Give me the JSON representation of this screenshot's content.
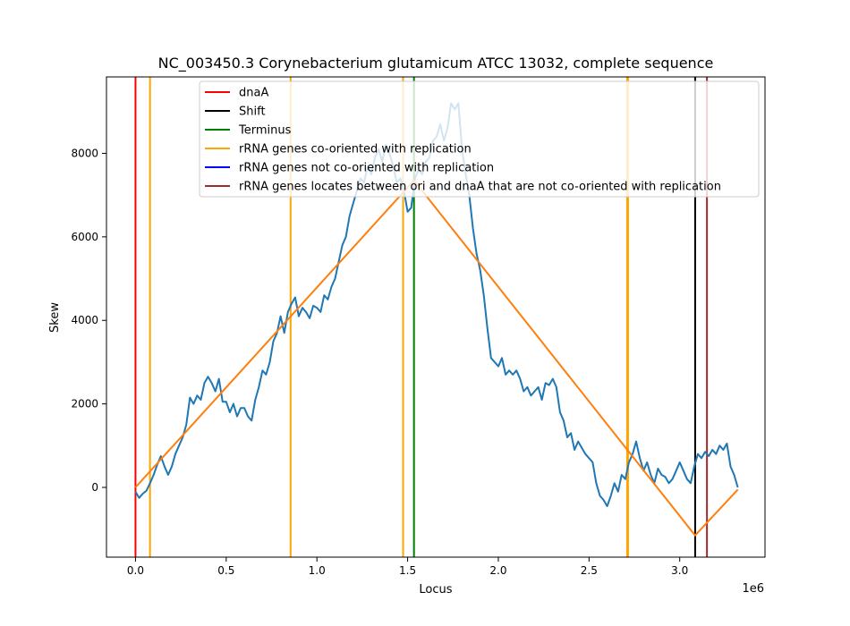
{
  "chart_data": {
    "type": "line",
    "title": "NC_003450.3 Corynebacterium glutamicum ATCC 13032, complete sequence",
    "xlabel": "Locus",
    "ylabel": "Skew",
    "x_offset_label": "1e6",
    "xlim": [
      -0.16,
      3.47
    ],
    "ylim": [
      -1670,
      9830
    ],
    "x_ticks": [
      0.0,
      0.5,
      1.0,
      1.5,
      2.0,
      2.5,
      3.0
    ],
    "x_tick_labels": [
      "0.0",
      "0.5",
      "1.0",
      "1.5",
      "2.0",
      "2.5",
      "3.0"
    ],
    "y_ticks": [
      0,
      2000,
      4000,
      6000,
      8000
    ],
    "y_tick_labels": [
      "0",
      "2000",
      "4000",
      "6000",
      "8000"
    ],
    "grid": false,
    "legend_position": "top-right",
    "legend": [
      {
        "label": "dnaA",
        "color": "#ff0000"
      },
      {
        "label": "Shift",
        "color": "#000000"
      },
      {
        "label": "Terminus",
        "color": "#008000"
      },
      {
        "label": "rRNA genes co-oriented with replication",
        "color": "#ffa500"
      },
      {
        "label": "rRNA genes not co-oriented with replication",
        "color": "#0000ff"
      },
      {
        "label": "rRNA genes locates between ori and dnaA that are not co-oriented with replication",
        "color": "#a52a2a"
      }
    ],
    "vertical_lines": [
      {
        "x": 0.0,
        "color": "#ff0000",
        "kind": "dnaA"
      },
      {
        "x": 0.08,
        "color": "#ffa500",
        "kind": "rRNA co-oriented"
      },
      {
        "x": 0.855,
        "color": "#ffa500",
        "kind": "rRNA co-oriented"
      },
      {
        "x": 1.475,
        "color": "#ffa500",
        "kind": "rRNA co-oriented"
      },
      {
        "x": 2.71,
        "color": "#ffa500",
        "kind": "rRNA co-oriented"
      },
      {
        "x": 2.715,
        "color": "#ffa500",
        "kind": "rRNA co-oriented"
      },
      {
        "x": 1.535,
        "color": "#008000",
        "kind": "Terminus"
      },
      {
        "x": 3.085,
        "color": "#000000",
        "kind": "Shift"
      },
      {
        "x": 3.15,
        "color": "#a52a2a",
        "kind": "rRNA between ori and dnaA"
      }
    ],
    "series": [
      {
        "color": "#1f77b4",
        "points": [
          [
            0.0,
            -100
          ],
          [
            0.02,
            -250
          ],
          [
            0.04,
            -150
          ],
          [
            0.06,
            -80
          ],
          [
            0.08,
            100
          ],
          [
            0.1,
            300
          ],
          [
            0.12,
            550
          ],
          [
            0.14,
            750
          ],
          [
            0.16,
            500
          ],
          [
            0.18,
            300
          ],
          [
            0.2,
            500
          ],
          [
            0.22,
            800
          ],
          [
            0.24,
            1000
          ],
          [
            0.26,
            1200
          ],
          [
            0.28,
            1500
          ],
          [
            0.3,
            2150
          ],
          [
            0.32,
            2000
          ],
          [
            0.34,
            2200
          ],
          [
            0.36,
            2100
          ],
          [
            0.38,
            2500
          ],
          [
            0.4,
            2650
          ],
          [
            0.42,
            2500
          ],
          [
            0.44,
            2300
          ],
          [
            0.46,
            2600
          ],
          [
            0.48,
            2050
          ],
          [
            0.5,
            2050
          ],
          [
            0.52,
            1800
          ],
          [
            0.54,
            2000
          ],
          [
            0.56,
            1700
          ],
          [
            0.58,
            1900
          ],
          [
            0.6,
            1900
          ],
          [
            0.62,
            1700
          ],
          [
            0.64,
            1600
          ],
          [
            0.66,
            2100
          ],
          [
            0.68,
            2400
          ],
          [
            0.7,
            2800
          ],
          [
            0.72,
            2700
          ],
          [
            0.74,
            3000
          ],
          [
            0.76,
            3500
          ],
          [
            0.78,
            3700
          ],
          [
            0.8,
            4100
          ],
          [
            0.82,
            3700
          ],
          [
            0.84,
            4200
          ],
          [
            0.86,
            4400
          ],
          [
            0.88,
            4550
          ],
          [
            0.9,
            4100
          ],
          [
            0.92,
            4300
          ],
          [
            0.94,
            4200
          ],
          [
            0.96,
            4050
          ],
          [
            0.98,
            4350
          ],
          [
            1.0,
            4300
          ],
          [
            1.02,
            4200
          ],
          [
            1.04,
            4600
          ],
          [
            1.06,
            4500
          ],
          [
            1.08,
            4800
          ],
          [
            1.1,
            5000
          ],
          [
            1.12,
            5400
          ],
          [
            1.14,
            5800
          ],
          [
            1.16,
            6000
          ],
          [
            1.18,
            6500
          ],
          [
            1.2,
            6800
          ],
          [
            1.22,
            7100
          ],
          [
            1.24,
            7400
          ],
          [
            1.26,
            7300
          ],
          [
            1.28,
            7700
          ],
          [
            1.3,
            7500
          ],
          [
            1.32,
            7900
          ],
          [
            1.34,
            8100
          ],
          [
            1.36,
            7800
          ],
          [
            1.38,
            8200
          ],
          [
            1.4,
            8000
          ],
          [
            1.42,
            7700
          ],
          [
            1.44,
            7300
          ],
          [
            1.46,
            7400
          ],
          [
            1.48,
            7100
          ],
          [
            1.5,
            6600
          ],
          [
            1.52,
            6700
          ],
          [
            1.54,
            7400
          ],
          [
            1.56,
            7600
          ],
          [
            1.58,
            7500
          ],
          [
            1.6,
            7800
          ],
          [
            1.62,
            7900
          ],
          [
            1.64,
            8300
          ],
          [
            1.66,
            8400
          ],
          [
            1.68,
            8700
          ],
          [
            1.7,
            8300
          ],
          [
            1.72,
            8600
          ],
          [
            1.74,
            9200
          ],
          [
            1.76,
            9050
          ],
          [
            1.78,
            9200
          ],
          [
            1.8,
            8100
          ],
          [
            1.82,
            7500
          ],
          [
            1.84,
            7000
          ],
          [
            1.86,
            6200
          ],
          [
            1.88,
            5600
          ],
          [
            1.9,
            5200
          ],
          [
            1.92,
            4600
          ],
          [
            1.94,
            3800
          ],
          [
            1.96,
            3100
          ],
          [
            1.98,
            3000
          ],
          [
            2.0,
            2900
          ],
          [
            2.02,
            3100
          ],
          [
            2.04,
            2700
          ],
          [
            2.06,
            2800
          ],
          [
            2.08,
            2700
          ],
          [
            2.1,
            2800
          ],
          [
            2.12,
            2600
          ],
          [
            2.14,
            2300
          ],
          [
            2.16,
            2400
          ],
          [
            2.18,
            2200
          ],
          [
            2.2,
            2300
          ],
          [
            2.22,
            2400
          ],
          [
            2.24,
            2100
          ],
          [
            2.26,
            2500
          ],
          [
            2.28,
            2450
          ],
          [
            2.3,
            2600
          ],
          [
            2.32,
            2400
          ],
          [
            2.34,
            1800
          ],
          [
            2.36,
            1600
          ],
          [
            2.38,
            1200
          ],
          [
            2.4,
            1300
          ],
          [
            2.42,
            900
          ],
          [
            2.44,
            1100
          ],
          [
            2.46,
            950
          ],
          [
            2.48,
            800
          ],
          [
            2.5,
            700
          ],
          [
            2.52,
            600
          ],
          [
            2.54,
            100
          ],
          [
            2.56,
            -200
          ],
          [
            2.58,
            -300
          ],
          [
            2.6,
            -450
          ],
          [
            2.62,
            -200
          ],
          [
            2.64,
            100
          ],
          [
            2.66,
            -100
          ],
          [
            2.68,
            300
          ],
          [
            2.7,
            200
          ],
          [
            2.72,
            600
          ],
          [
            2.74,
            800
          ],
          [
            2.76,
            1100
          ],
          [
            2.78,
            700
          ],
          [
            2.8,
            400
          ],
          [
            2.82,
            600
          ],
          [
            2.84,
            300
          ],
          [
            2.86,
            100
          ],
          [
            2.88,
            450
          ],
          [
            2.9,
            300
          ],
          [
            2.92,
            250
          ],
          [
            2.94,
            100
          ],
          [
            2.96,
            200
          ],
          [
            2.98,
            400
          ],
          [
            3.0,
            600
          ],
          [
            3.02,
            400
          ],
          [
            3.04,
            200
          ],
          [
            3.06,
            100
          ],
          [
            3.08,
            500
          ],
          [
            3.1,
            800
          ],
          [
            3.12,
            700
          ],
          [
            3.14,
            850
          ],
          [
            3.16,
            750
          ],
          [
            3.18,
            900
          ],
          [
            3.2,
            800
          ],
          [
            3.22,
            1000
          ],
          [
            3.24,
            900
          ],
          [
            3.26,
            1050
          ],
          [
            3.28,
            500
          ],
          [
            3.3,
            300
          ],
          [
            3.32,
            0
          ]
        ]
      },
      {
        "color": "#ff7f0e",
        "points": [
          [
            0.0,
            0
          ],
          [
            1.535,
            7350
          ],
          [
            3.085,
            -1150
          ],
          [
            3.32,
            -50
          ]
        ]
      }
    ]
  }
}
